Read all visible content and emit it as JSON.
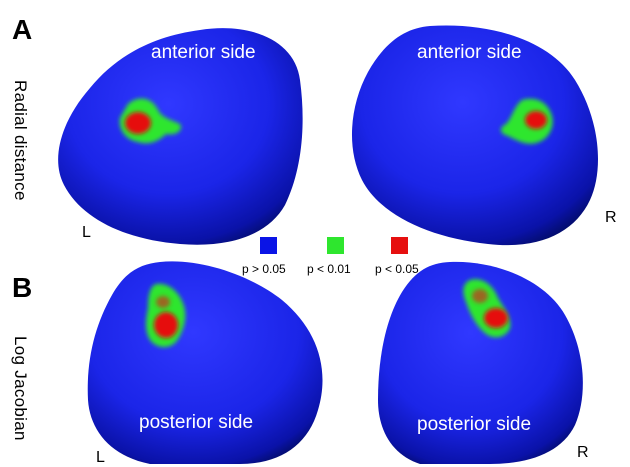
{
  "panels": [
    {
      "letter": "A",
      "row_label": "Radial distance",
      "views": [
        {
          "side_label": "anterior side",
          "hemisphere_label": "L"
        },
        {
          "side_label": "anterior side",
          "hemisphere_label": "R"
        }
      ]
    },
    {
      "letter": "B",
      "row_label": "Log Jacobian",
      "views": [
        {
          "side_label": "posterior side",
          "hemisphere_label": "L"
        },
        {
          "side_label": "posterior side",
          "hemisphere_label": "R"
        }
      ]
    }
  ],
  "legend": [
    {
      "label": "p > 0.05",
      "color": "#0a14e6"
    },
    {
      "label": "p < 0.01",
      "color": "#2ee62e"
    },
    {
      "label": "p < 0.05",
      "color": "#e60f0f"
    }
  ],
  "colors": {
    "surface": "#1f2af0",
    "surface_shadow": "#000a50",
    "significant_low": "#2ee62e",
    "significant_high": "#e60f0f"
  }
}
